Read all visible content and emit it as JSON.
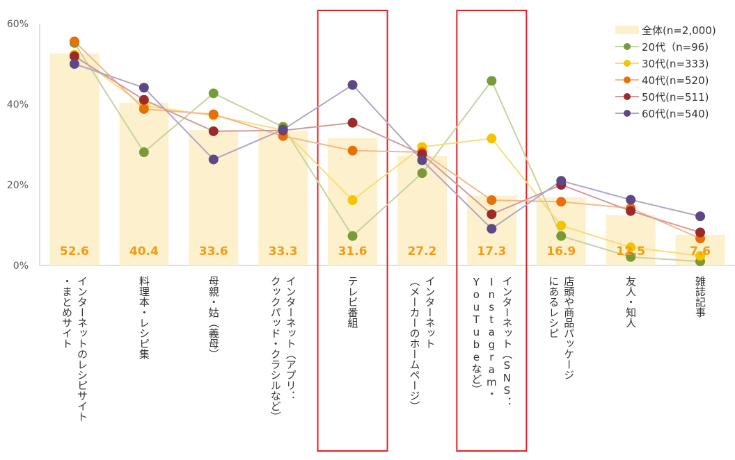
{
  "chart_data": {
    "type": "bar+line",
    "ylim": [
      0,
      60
    ],
    "yticks": [
      "0%",
      "20%",
      "40%",
      "60%"
    ],
    "ytick_values": [
      0,
      20,
      40,
      60
    ],
    "categories": [
      [
        "インターネットのレシピサイト",
        "・まとめサイト"
      ],
      [
        "料理本・レシピ集"
      ],
      [
        "母親・姑（義母）"
      ],
      [
        "インターネット（アプリ：",
        "クックパッド・クラシルなど）"
      ],
      [
        "テレビ番組"
      ],
      [
        "インターネット",
        "（メーカーのホームページ）"
      ],
      [
        "インターネット（SNS：",
        "Instagram・",
        "YouTubeなど）"
      ],
      [
        "店頭や商品パッケージ",
        "にあるレシピ"
      ],
      [
        "友人・知人"
      ],
      [
        "雑誌記事"
      ]
    ],
    "bar_series": {
      "name": "全体(n=2,000)",
      "color": "#fdf0cc",
      "values": [
        52.6,
        40.4,
        33.6,
        33.3,
        31.6,
        27.2,
        17.3,
        16.9,
        12.5,
        7.6
      ],
      "labels": [
        "52.6",
        "40.4",
        "33.6",
        "33.3",
        "31.6",
        "27.2",
        "17.3",
        "16.9",
        "12.5",
        "7.6"
      ]
    },
    "series": [
      {
        "name": "20代（n=96)",
        "color": "#7a9a3a",
        "line": "#c3d49d",
        "values": [
          55.2,
          28.1,
          42.7,
          34.4,
          7.3,
          22.9,
          45.8,
          7.3,
          2.1,
          1.0
        ]
      },
      {
        "name": "30代(n=333)",
        "color": "#f5c300",
        "line": "#f9dc7a",
        "values": [
          52.3,
          39.6,
          37.2,
          33.6,
          16.2,
          29.4,
          31.5,
          9.9,
          4.5,
          2.4
        ]
      },
      {
        "name": "40代(n=520)",
        "color": "#e8700a",
        "line": "#f2b98a",
        "values": [
          55.6,
          38.8,
          37.5,
          32.1,
          28.5,
          28.1,
          16.2,
          15.8,
          14.2,
          6.7
        ]
      },
      {
        "name": "50代(n=511)",
        "color": "#9c2a2a",
        "line": "#d39a9a",
        "values": [
          51.9,
          41.1,
          33.3,
          33.5,
          35.4,
          27.6,
          12.7,
          20.0,
          13.5,
          8.2
        ]
      },
      {
        "name": "60代(n=540)",
        "color": "#5e4785",
        "line": "#b0a5c9",
        "values": [
          50.0,
          44.1,
          26.3,
          33.7,
          44.8,
          26.1,
          9.1,
          21.0,
          16.3,
          12.2
        ]
      }
    ],
    "highlighted_categories": [
      4,
      6
    ],
    "highlight_color": "#e31e24",
    "legend_position": "top-right",
    "title": "",
    "xlabel": "",
    "ylabel": ""
  }
}
